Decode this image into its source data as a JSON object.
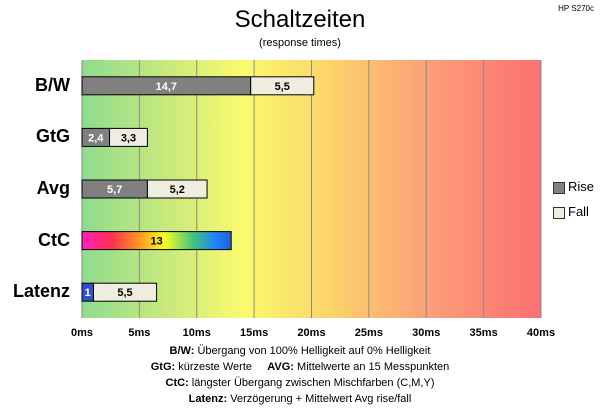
{
  "title": "Schaltzeiten",
  "subtitle": "(response times)",
  "model": "HP S270c",
  "legend": {
    "rise": "Rise",
    "fall": "Fall"
  },
  "colors": {
    "rise": "#808080",
    "fall": "#efece0",
    "border": "#000000"
  },
  "notes": [
    {
      "bold": "B/W:",
      "text": " Übergang von 100% Helligkeit auf 0% Helligkeit"
    },
    {
      "bold": "GtG:",
      "text": " kürzeste Werte",
      "bold2": "AVG:",
      "text2": " Mittelwerte an 15 Messpunkten"
    },
    {
      "bold": "CtC:",
      "text": " längster Übergang zwischen Mischfarben (C,M,Y)"
    },
    {
      "bold": "Latenz:",
      "text": " Verzögerung + Mittelwert Avg rise/fall"
    }
  ],
  "chart_data": {
    "type": "bar",
    "orientation": "horizontal",
    "stacked": true,
    "categories": [
      "B/W",
      "GtG",
      "Avg",
      "CtC",
      "Latenz"
    ],
    "series": [
      {
        "name": "Rise",
        "values": [
          14.7,
          2.4,
          5.7,
          13,
          1
        ],
        "labels": [
          "14,7",
          "2,4",
          "5,7",
          "13",
          "1"
        ]
      },
      {
        "name": "Fall",
        "values": [
          5.5,
          3.3,
          5.2,
          null,
          5.5
        ],
        "labels": [
          "5,5",
          "3,3",
          "5,2",
          "",
          "5,5"
        ]
      }
    ],
    "xlim": [
      0,
      40
    ],
    "ticks": [
      "0ms",
      "5ms",
      "10ms",
      "15ms",
      "20ms",
      "25ms",
      "30ms",
      "35ms",
      "40ms"
    ],
    "tick_values": [
      0,
      5,
      10,
      15,
      20,
      25,
      30,
      35,
      40
    ],
    "grid": true,
    "legend_position": "right"
  }
}
